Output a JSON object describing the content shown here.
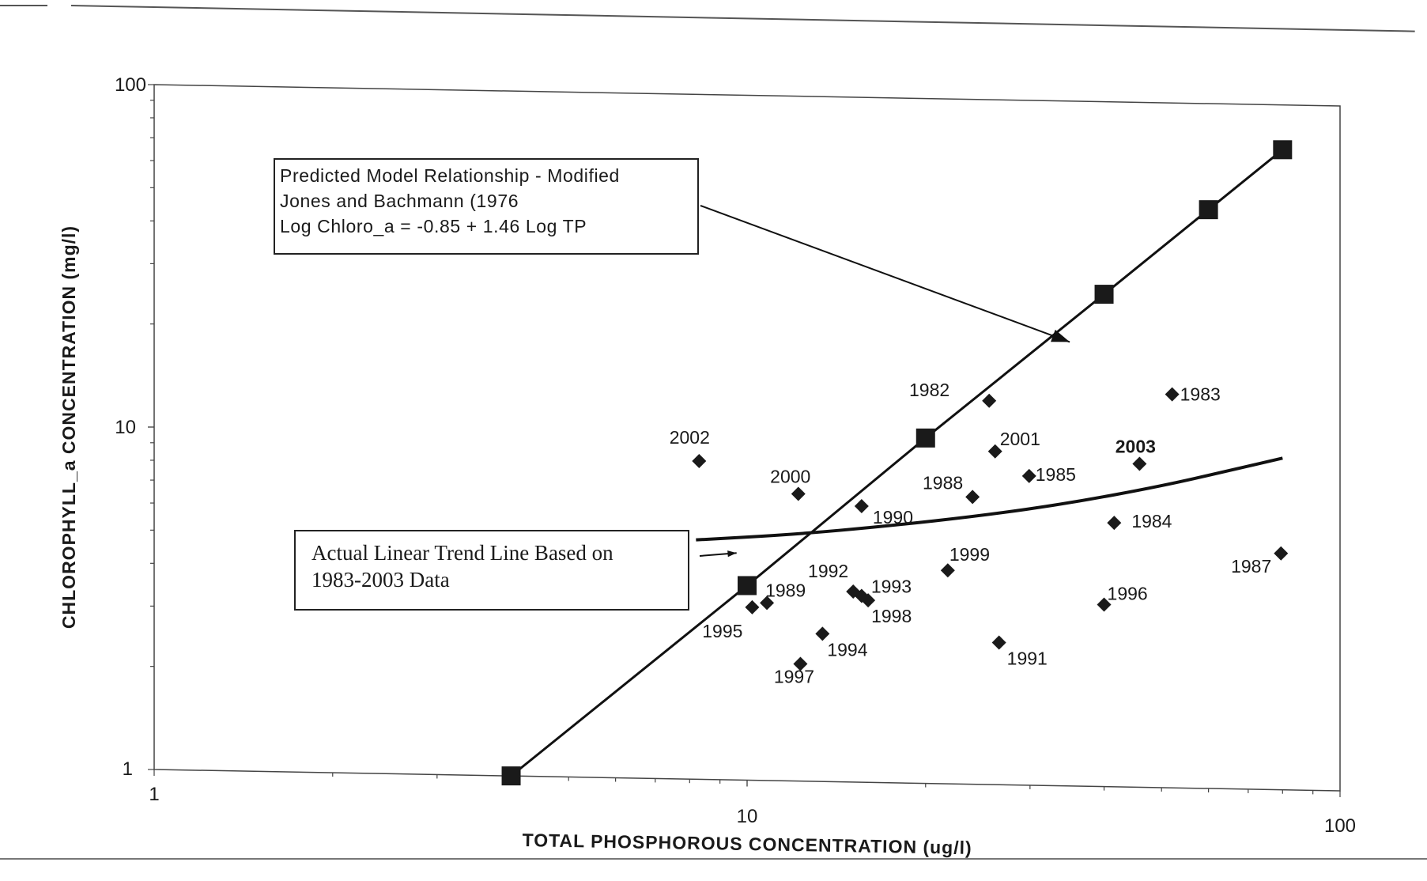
{
  "chart_data": {
    "type": "scatter",
    "title": "",
    "xlabel": "TOTAL PHOSPHOROUS CONCENTRATION (ug/l)",
    "ylabel": "CHLOROPHYLL_a CONCENTRATION (mg/l)",
    "x_scale": "log",
    "y_scale": "log",
    "xlim": [
      1,
      100
    ],
    "ylim": [
      1,
      100
    ],
    "x_tick_labels": [
      "1",
      "10",
      "100"
    ],
    "y_tick_labels": [
      "1",
      "10",
      "100"
    ],
    "grid": false,
    "series": [
      {
        "kind": "observed",
        "marker": "diamond",
        "points": [
          {
            "label": "1982",
            "x": 25.6,
            "y": 13.2
          },
          {
            "label": "1983",
            "x": 52.1,
            "y": 14.1
          },
          {
            "label": "1984",
            "x": 41.6,
            "y": 5.9
          },
          {
            "label": "1985",
            "x": 29.9,
            "y": 8.0
          },
          {
            "label": "1987",
            "x": 79.5,
            "y": 4.9
          },
          {
            "label": "1988",
            "x": 24.0,
            "y": 6.9
          },
          {
            "label": "1989",
            "x": 10.8,
            "y": 3.3
          },
          {
            "label": "1990",
            "x": 15.6,
            "y": 6.4
          },
          {
            "label": "1991",
            "x": 26.6,
            "y": 2.6
          },
          {
            "label": "1992",
            "x": 15.1,
            "y": 3.6
          },
          {
            "label": "1993",
            "x": 15.6,
            "y": 3.5
          },
          {
            "label": "1994",
            "x": 13.4,
            "y": 2.7
          },
          {
            "label": "1995",
            "x": 10.2,
            "y": 3.2
          },
          {
            "label": "1996",
            "x": 40.0,
            "y": 3.4
          },
          {
            "label": "1997",
            "x": 12.3,
            "y": 2.2
          },
          {
            "label": "1998",
            "x": 16.0,
            "y": 3.4
          },
          {
            "label": "1999",
            "x": 21.8,
            "y": 4.2
          },
          {
            "label": "2000",
            "x": 12.2,
            "y": 6.9
          },
          {
            "label": "2001",
            "x": 26.2,
            "y": 9.4
          },
          {
            "label": "2002",
            "x": 8.3,
            "y": 8.5
          },
          {
            "label": "2003",
            "x": 45.9,
            "y": 8.8
          }
        ]
      },
      {
        "kind": "model",
        "marker": "square",
        "points": [
          {
            "x": 4.0,
            "y": 1.0
          },
          {
            "x": 10.0,
            "y": 3.7
          },
          {
            "x": 20.0,
            "y": 10.2
          },
          {
            "x": 40.0,
            "y": 27.4
          },
          {
            "x": 60.0,
            "y": 49.0
          },
          {
            "x": 80.0,
            "y": 74.0
          }
        ]
      },
      {
        "kind": "trend",
        "marker": "none",
        "points": [
          {
            "x": 8.2,
            "y": 5.0
          },
          {
            "x": 12.0,
            "y": 5.25
          },
          {
            "x": 17.0,
            "y": 5.6
          },
          {
            "x": 25.0,
            "y": 6.1
          },
          {
            "x": 35.0,
            "y": 6.7
          },
          {
            "x": 50.0,
            "y": 7.6
          },
          {
            "x": 65.0,
            "y": 8.5
          },
          {
            "x": 80.0,
            "y": 9.3
          }
        ]
      }
    ],
    "annotations": [
      {
        "id": "model",
        "lines": [
          "Predicted Model Relationship -  Modified",
          "Jones and Bachmann (1976",
          "Log Chloro_a = -0.85 + 1.46 Log TP"
        ],
        "arrow_to": {
          "x": 35.0,
          "y": 19.8
        }
      },
      {
        "id": "trend",
        "lines": [
          "Actual Linear Trend Line Based on",
          "1983-2003 Data"
        ],
        "arrow_to": {
          "x": 9.6,
          "y": 4.6
        }
      }
    ]
  }
}
